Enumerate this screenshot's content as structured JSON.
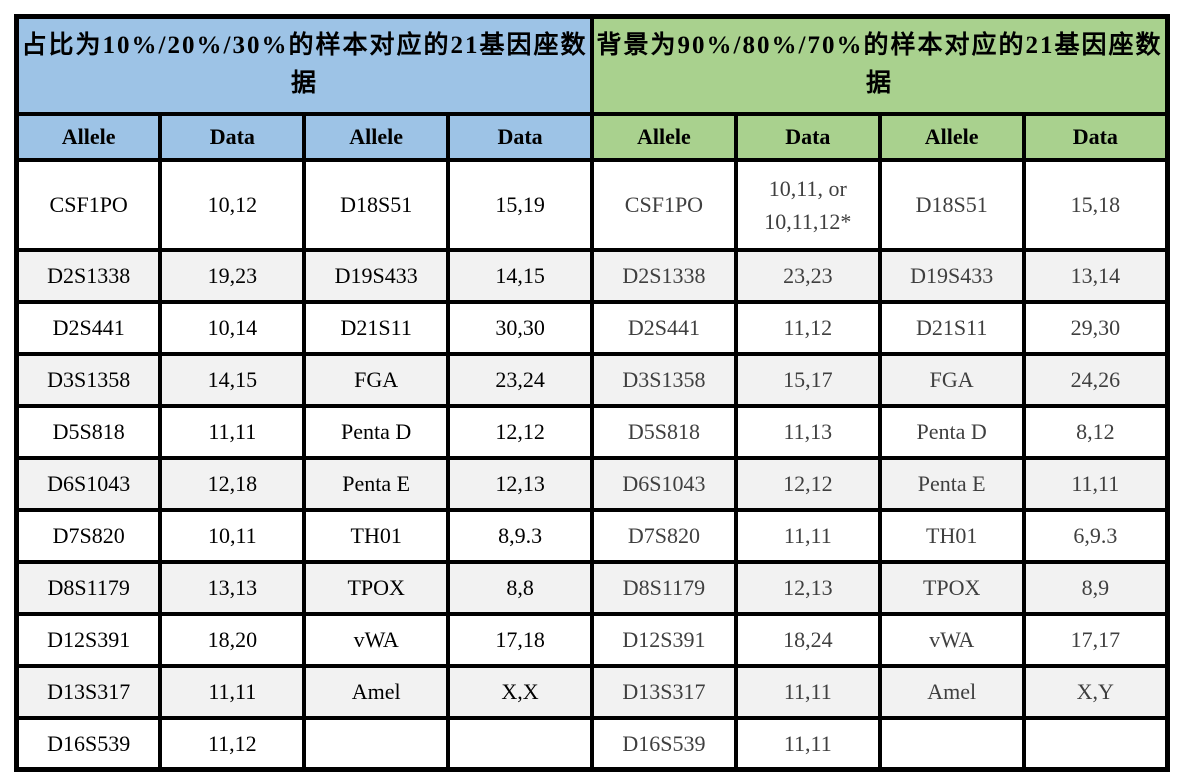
{
  "colors": {
    "left-header-bg": "#9DC3E6",
    "right-header-bg": "#A9D18E",
    "row-alt-bg": "#F2F2F2",
    "row-bg": "#FFFFFF",
    "border-color": "#000000",
    "left-text": "#000000",
    "right-text": "#3F3F3F"
  },
  "left": {
    "title": "占比为10%/20%/30%的样本对应的21基因座数据",
    "columns": [
      "Allele",
      "Data",
      "Allele",
      "Data"
    ],
    "rows": [
      [
        "CSF1PO",
        "10,12",
        "D18S51",
        "15,19"
      ],
      [
        "D2S1338",
        "19,23",
        "D19S433",
        "14,15"
      ],
      [
        "D2S441",
        "10,14",
        "D21S11",
        "30,30"
      ],
      [
        "D3S1358",
        "14,15",
        "FGA",
        "23,24"
      ],
      [
        "D5S818",
        "11,11",
        "Penta D",
        "12,12"
      ],
      [
        "D6S1043",
        "12,18",
        "Penta E",
        "12,13"
      ],
      [
        "D7S820",
        "10,11",
        "TH01",
        "8,9.3"
      ],
      [
        "D8S1179",
        "13,13",
        "TPOX",
        "8,8"
      ],
      [
        "D12S391",
        "18,20",
        "vWA",
        "17,18"
      ],
      [
        "D13S317",
        "11,11",
        "Amel",
        "X,X"
      ],
      [
        "D16S539",
        "11,12",
        "",
        ""
      ]
    ]
  },
  "right": {
    "title": "背景为90%/80%/70%的样本对应的21基因座数据",
    "columns": [
      "Allele",
      "Data",
      "Allele",
      "Data"
    ],
    "rows": [
      [
        "CSF1PO",
        "10,11, or\n10,11,12*",
        "D18S51",
        "15,18"
      ],
      [
        "D2S1338",
        "23,23",
        "D19S433",
        "13,14"
      ],
      [
        "D2S441",
        "11,12",
        "D21S11",
        "29,30"
      ],
      [
        "D3S1358",
        "15,17",
        "FGA",
        "24,26"
      ],
      [
        "D5S818",
        "11,13",
        "Penta D",
        "8,12"
      ],
      [
        "D6S1043",
        "12,12",
        "Penta E",
        "11,11"
      ],
      [
        "D7S820",
        "11,11",
        "TH01",
        "6,9.3"
      ],
      [
        "D8S1179",
        "12,13",
        "TPOX",
        "8,9"
      ],
      [
        "D12S391",
        "18,24",
        "vWA",
        "17,17"
      ],
      [
        "D13S317",
        "11,11",
        "Amel",
        "X,Y"
      ],
      [
        "D16S539",
        "11,11",
        "",
        ""
      ]
    ]
  }
}
